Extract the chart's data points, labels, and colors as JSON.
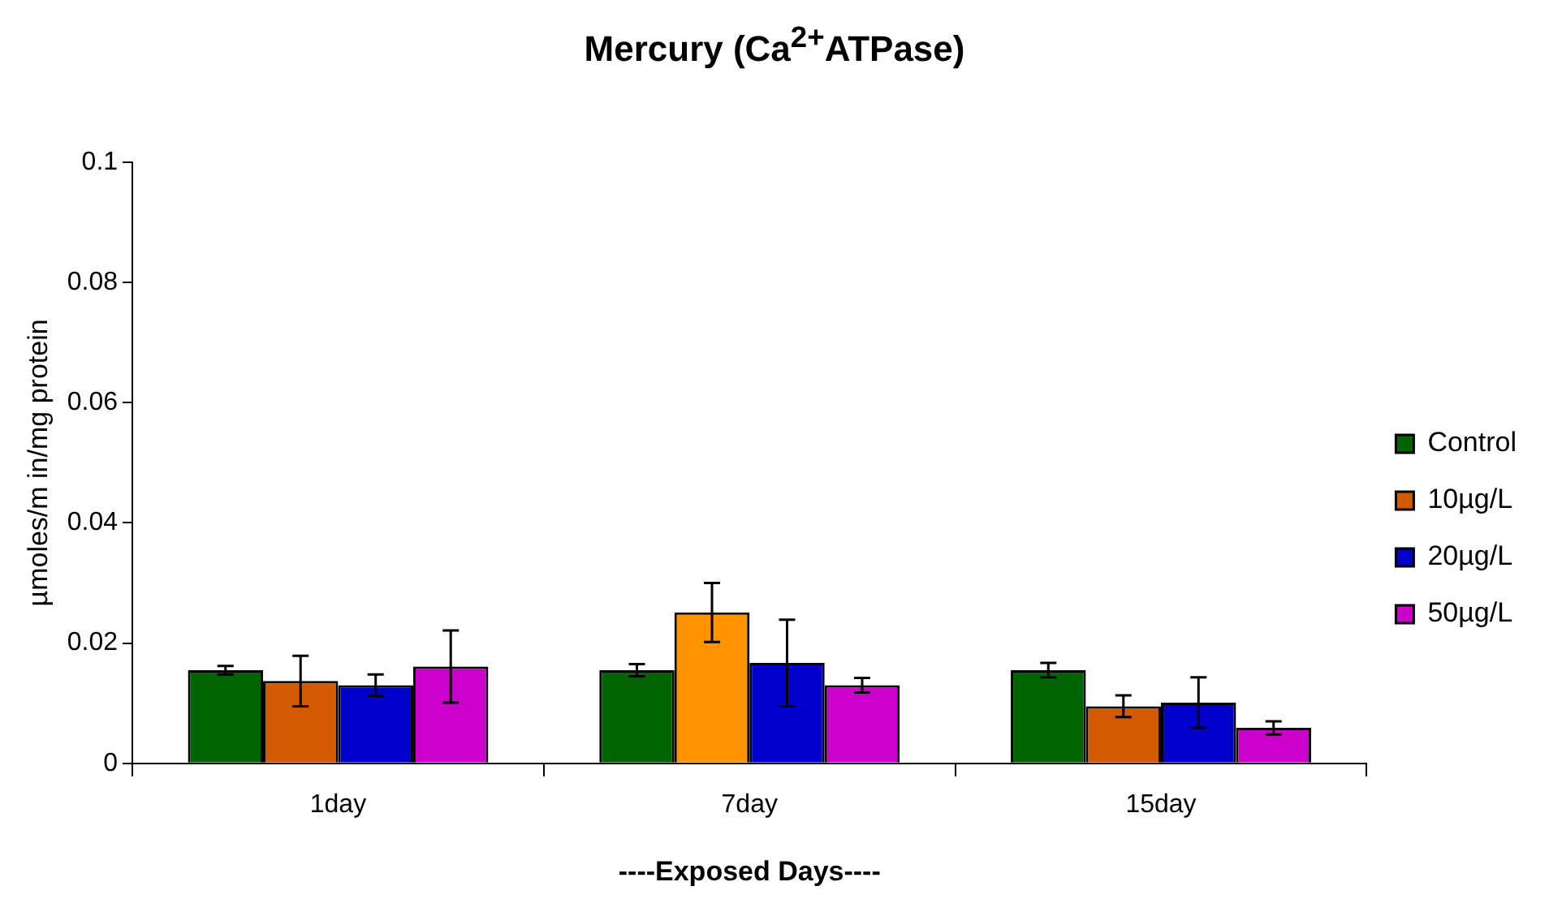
{
  "chart_data": {
    "type": "bar",
    "title": "Mercury (Ca$^{2+}$ATPase)",
    "xlabel": "----Exposed Days----",
    "ylabel": "µmoles/m in/mg protein",
    "categories": [
      "1day",
      "7day",
      "15day"
    ],
    "series": [
      {
        "name": "Control",
        "color": "#006400",
        "values": [
          0.0155,
          0.0155,
          0.0155
        ],
        "errors": [
          0.0007,
          0.001,
          0.0012
        ]
      },
      {
        "name": "10µg/L",
        "color": "#d45a00",
        "colors": [
          "#d45a00",
          "#ff9400",
          "#d45a00"
        ],
        "values": [
          0.0137,
          0.0251,
          0.0095
        ],
        "errors": [
          0.0042,
          0.0049,
          0.0018
        ]
      },
      {
        "name": "20µg/L",
        "color": "#0000cc",
        "values": [
          0.013,
          0.0167,
          0.0101
        ],
        "errors": [
          0.0018,
          0.0072,
          0.0042
        ]
      },
      {
        "name": "50µg/L",
        "color": "#cc00cc",
        "values": [
          0.0161,
          0.013,
          0.0059
        ],
        "errors": [
          0.006,
          0.0012,
          0.0011
        ]
      }
    ],
    "ylim": [
      0,
      0.1
    ],
    "yticks": [
      0,
      0.02,
      0.04,
      0.06,
      0.08,
      0.1
    ],
    "grid": false,
    "legend": "right"
  }
}
